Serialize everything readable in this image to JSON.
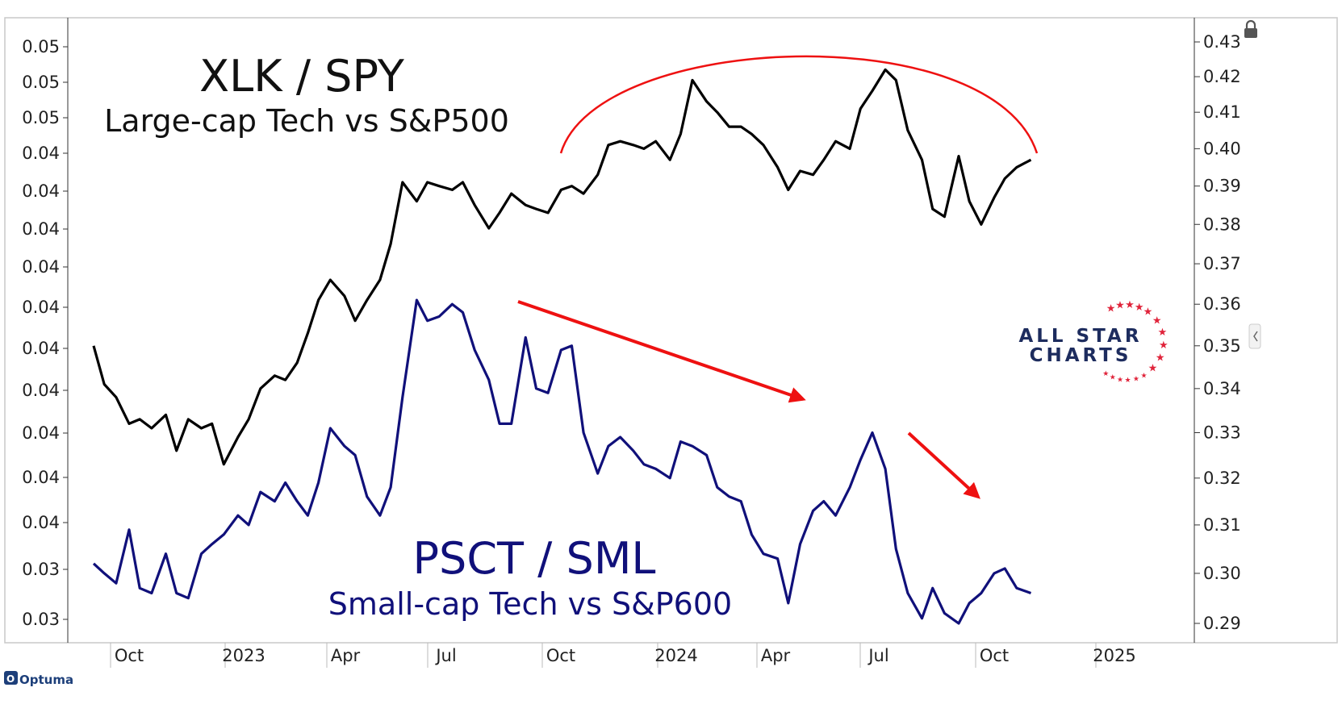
{
  "chart_data": {
    "type": "line",
    "x_tick_labels": [
      "Oct",
      "2023",
      "Apr",
      "Jul",
      "Oct",
      "2024",
      "Apr",
      "Jul",
      "Oct",
      "2025"
    ],
    "left_axis_tick_labels": [
      "0.05",
      "0.05",
      "0.05",
      "0.04",
      "0.04",
      "0.04",
      "0.04",
      "0.04",
      "0.04",
      "0.04",
      "0.04",
      "0.04",
      "0.04",
      "0.03",
      "0.03"
    ],
    "right_axis_tick_labels": [
      "0.43",
      "0.42",
      "0.41",
      "0.40",
      "0.39",
      "0.38",
      "0.37",
      "0.36",
      "0.35",
      "0.34",
      "0.33",
      "0.32",
      "0.31",
      "0.30",
      "0.29"
    ],
    "right_ylim": [
      0.288,
      0.434
    ],
    "left_ylim": [
      0.0305,
      0.0555
    ],
    "log_scale": true,
    "grid": false,
    "annotations": {
      "xlk_title": "XLK / SPY",
      "xlk_subtitle": "Large-cap Tech vs S&P500",
      "psct_title": "PSCT / SML",
      "psct_subtitle": "Small-cap Tech vs S&P600"
    },
    "series": [
      {
        "name": "XLK / SPY",
        "color": "#000000",
        "axis": "right",
        "x": [
          "2022-09-01",
          "2022-09-10",
          "2022-09-20",
          "2022-10-01",
          "2022-10-10",
          "2022-10-20",
          "2022-11-01",
          "2022-11-10",
          "2022-11-20",
          "2022-12-01",
          "2022-12-10",
          "2022-12-20",
          "2023-01-01",
          "2023-01-10",
          "2023-01-20",
          "2023-02-01",
          "2023-02-10",
          "2023-02-20",
          "2023-03-01",
          "2023-03-10",
          "2023-03-20",
          "2023-04-01",
          "2023-04-10",
          "2023-04-20",
          "2023-05-01",
          "2023-05-10",
          "2023-05-20",
          "2023-06-01",
          "2023-06-10",
          "2023-06-20",
          "2023-07-01",
          "2023-07-10",
          "2023-07-20",
          "2023-08-01",
          "2023-08-10",
          "2023-08-20",
          "2023-09-01",
          "2023-09-10",
          "2023-09-20",
          "2023-10-01",
          "2023-10-10",
          "2023-10-20",
          "2023-11-01",
          "2023-11-10",
          "2023-11-20",
          "2023-12-01",
          "2023-12-10",
          "2023-12-20",
          "2024-01-01",
          "2024-01-10",
          "2024-01-20",
          "2024-02-01",
          "2024-02-10",
          "2024-02-20",
          "2024-03-01",
          "2024-03-10",
          "2024-03-20",
          "2024-04-01",
          "2024-04-10",
          "2024-04-20",
          "2024-05-01",
          "2024-05-10",
          "2024-05-20",
          "2024-06-01",
          "2024-06-10",
          "2024-06-20",
          "2024-07-01",
          "2024-07-10",
          "2024-07-20",
          "2024-08-01",
          "2024-08-10",
          "2024-08-20",
          "2024-09-01",
          "2024-09-10",
          "2024-09-20",
          "2024-10-01",
          "2024-10-10",
          "2024-10-20",
          "2024-11-01"
        ],
        "y": [
          0.35,
          0.341,
          0.338,
          0.332,
          0.333,
          0.331,
          0.334,
          0.326,
          0.333,
          0.331,
          0.332,
          0.323,
          0.329,
          0.333,
          0.34,
          0.343,
          0.342,
          0.346,
          0.353,
          0.361,
          0.366,
          0.362,
          0.356,
          0.361,
          0.366,
          0.375,
          0.391,
          0.386,
          0.391,
          0.39,
          0.389,
          0.391,
          0.385,
          0.379,
          0.383,
          0.388,
          0.385,
          0.384,
          0.383,
          0.389,
          0.39,
          0.388,
          0.393,
          0.401,
          0.402,
          0.401,
          0.4,
          0.402,
          0.397,
          0.404,
          0.419,
          0.413,
          0.41,
          0.406,
          0.406,
          0.404,
          0.401,
          0.395,
          0.389,
          0.394,
          0.393,
          0.397,
          0.402,
          0.4,
          0.411,
          0.416,
          0.422,
          0.419,
          0.405,
          0.397,
          0.384,
          0.382,
          0.398,
          0.386,
          0.38,
          0.387,
          0.392,
          0.395,
          0.397
        ]
      },
      {
        "name": "PSCT / SML",
        "color": "#10107a",
        "axis": "right",
        "x": [
          "2022-09-01",
          "2022-09-10",
          "2022-09-20",
          "2022-10-01",
          "2022-10-10",
          "2022-10-20",
          "2022-11-01",
          "2022-11-10",
          "2022-11-20",
          "2022-12-01",
          "2022-12-10",
          "2022-12-20",
          "2023-01-01",
          "2023-01-10",
          "2023-01-20",
          "2023-02-01",
          "2023-02-10",
          "2023-02-20",
          "2023-03-01",
          "2023-03-10",
          "2023-03-20",
          "2023-04-01",
          "2023-04-10",
          "2023-04-20",
          "2023-05-01",
          "2023-05-10",
          "2023-05-20",
          "2023-06-01",
          "2023-06-10",
          "2023-06-20",
          "2023-07-01",
          "2023-07-10",
          "2023-07-20",
          "2023-08-01",
          "2023-08-10",
          "2023-08-20",
          "2023-09-01",
          "2023-09-10",
          "2023-09-20",
          "2023-10-01",
          "2023-10-10",
          "2023-10-20",
          "2023-11-01",
          "2023-11-10",
          "2023-11-20",
          "2023-12-01",
          "2023-12-10",
          "2023-12-20",
          "2024-01-01",
          "2024-01-10",
          "2024-01-20",
          "2024-02-01",
          "2024-02-10",
          "2024-02-20",
          "2024-03-01",
          "2024-03-10",
          "2024-03-20",
          "2024-04-01",
          "2024-04-10",
          "2024-04-20",
          "2024-05-01",
          "2024-05-10",
          "2024-05-20",
          "2024-06-01",
          "2024-06-10",
          "2024-06-20",
          "2024-07-01",
          "2024-07-10",
          "2024-07-20",
          "2024-08-01",
          "2024-08-10",
          "2024-08-20",
          "2024-09-01",
          "2024-09-10",
          "2024-09-20",
          "2024-10-01",
          "2024-10-10",
          "2024-10-20",
          "2024-11-01"
        ],
        "y": [
          0.302,
          0.3,
          0.298,
          0.309,
          0.297,
          0.296,
          0.304,
          0.296,
          0.295,
          0.304,
          0.306,
          0.308,
          0.312,
          0.31,
          0.317,
          0.315,
          0.319,
          0.315,
          0.312,
          0.319,
          0.331,
          0.327,
          0.325,
          0.316,
          0.312,
          0.318,
          0.338,
          0.361,
          0.356,
          0.357,
          0.36,
          0.358,
          0.349,
          0.342,
          0.332,
          0.332,
          0.352,
          0.34,
          0.339,
          0.349,
          0.35,
          0.33,
          0.321,
          0.327,
          0.329,
          0.326,
          0.323,
          0.322,
          0.32,
          0.328,
          0.327,
          0.325,
          0.318,
          0.316,
          0.315,
          0.308,
          0.304,
          0.303,
          0.294,
          0.306,
          0.313,
          0.315,
          0.312,
          0.318,
          0.324,
          0.33,
          0.322,
          0.305,
          0.296,
          0.291,
          0.297,
          0.292,
          0.29,
          0.294,
          0.296,
          0.3,
          0.301,
          0.297,
          0.296
        ]
      }
    ]
  },
  "logo": {
    "line1": "ALL STAR",
    "line2": "CHARTS",
    "color": "#1d2c5e",
    "star_color": "#e0233a"
  },
  "footer": {
    "brand": "Optuma"
  },
  "colors": {
    "annotation_red": "#ee1111",
    "psct_blue": "#10107a"
  }
}
